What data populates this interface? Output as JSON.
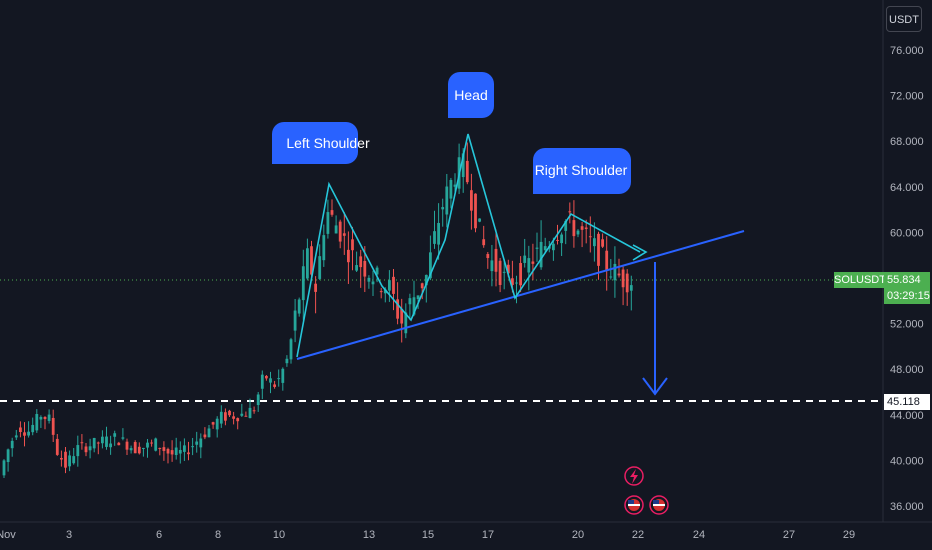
{
  "unit_button": "USDT",
  "symbol_label": "SOLUSDT.P",
  "last_price": "55.834",
  "countdown": "03:29:15",
  "support_level_label": "45.118",
  "colors": {
    "up": "#26a69a",
    "down": "#ef5350",
    "neckline": "#2962ff",
    "pattern": "#26c6da",
    "callout": "#2962ff",
    "support": "#ffffff",
    "price_badge": "#4caf50"
  },
  "chart_data": {
    "type": "candlestick",
    "y_axis": {
      "min": 34,
      "max": 78,
      "ticks": [
        36,
        40,
        44,
        48,
        52,
        56,
        60,
        64,
        68,
        72,
        76
      ],
      "tick_labels": [
        "36.000",
        "40.000",
        "44.000",
        "48.000",
        "52.000",
        "56.000",
        "60.000",
        "64.000",
        "68.000",
        "72.000",
        "76.000"
      ],
      "position": "right"
    },
    "x_axis": {
      "tick_labels": [
        "Nov",
        "3",
        "6",
        "8",
        "10",
        "13",
        "15",
        "17",
        "20",
        "22",
        "24",
        "27",
        "29"
      ]
    },
    "annotations": {
      "callouts": [
        "Left Shoulder",
        "Head",
        "Right Shoulder"
      ],
      "support_level": 45.118,
      "neckline": {
        "from_value": 49.0,
        "to_value": 60.0
      },
      "target_arrow": "down to support level",
      "event_icons": [
        "lightning-icon",
        "us-flag-icon",
        "us-flag-icon"
      ]
    },
    "legend": "none",
    "grid": false
  }
}
